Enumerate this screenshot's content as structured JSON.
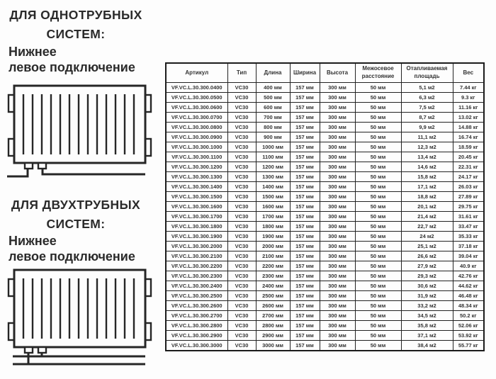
{
  "left_panel": {
    "one_pipe": {
      "title_line1": "ДЛЯ ОДНОТРУБНЫХ",
      "title_line2": "СИСТЕМ:",
      "subtitle_line1": "Нижнее",
      "subtitle_line2": "левое подключение"
    },
    "two_pipe": {
      "title_line1": "ДЛЯ ДВУХТРУБНЫХ",
      "title_line2": "СИСТЕМ:",
      "subtitle_line1": "Нижнее",
      "subtitle_line2": "левое подключение"
    }
  },
  "table": {
    "headers": [
      "Артикул",
      "Тип",
      "Длина",
      "Ширина",
      "Высота",
      "Межосевое расстояние",
      "Отапливаемая площадь",
      "Вес"
    ],
    "rows": [
      [
        "VF.VC.L.30.300.0400",
        "VC30",
        "400 мм",
        "157 мм",
        "300 мм",
        "50 мм",
        "5,1 м2",
        "7.44 кг"
      ],
      [
        "VF.VC.L.30.300.0500",
        "VC30",
        "500 мм",
        "157 мм",
        "300 мм",
        "50 мм",
        "6,3 м2",
        "9.3 кг"
      ],
      [
        "VF.VC.L.30.300.0600",
        "VC30",
        "600 мм",
        "157 мм",
        "300 мм",
        "50 мм",
        "7,5 м2",
        "11.16 кг"
      ],
      [
        "VF.VC.L.30.300.0700",
        "VC30",
        "700 мм",
        "157 мм",
        "300 мм",
        "50 мм",
        "8,7 м2",
        "13.02 кг"
      ],
      [
        "VF.VC.L.30.300.0800",
        "VC30",
        "800 мм",
        "157 мм",
        "300 мм",
        "50 мм",
        "9,9 м2",
        "14.88 кг"
      ],
      [
        "VF.VC.L.30.300.0900",
        "VC30",
        "900 мм",
        "157 мм",
        "300 мм",
        "50 мм",
        "11,1 м2",
        "16.74 кг"
      ],
      [
        "VF.VC.L.30.300.1000",
        "VC30",
        "1000 мм",
        "157 мм",
        "300 мм",
        "50 мм",
        "12,3 м2",
        "18.59 кг"
      ],
      [
        "VF.VC.L.30.300.1100",
        "VC30",
        "1100 мм",
        "157 мм",
        "300 мм",
        "50 мм",
        "13,4 м2",
        "20.45 кг"
      ],
      [
        "VF.VC.L.30.300.1200",
        "VC30",
        "1200 мм",
        "157 мм",
        "300 мм",
        "50 мм",
        "14,6 м2",
        "22.31 кг"
      ],
      [
        "VF.VC.L.30.300.1300",
        "VC30",
        "1300 мм",
        "157 мм",
        "300 мм",
        "50 мм",
        "15,8 м2",
        "24.17 кг"
      ],
      [
        "VF.VC.L.30.300.1400",
        "VC30",
        "1400 мм",
        "157 мм",
        "300 мм",
        "50 мм",
        "17,1 м2",
        "26.03 кг"
      ],
      [
        "VF.VC.L.30.300.1500",
        "VC30",
        "1500 мм",
        "157 мм",
        "300 мм",
        "50 мм",
        "18,8 м2",
        "27.89 кг"
      ],
      [
        "VF.VC.L.30.300.1600",
        "VC30",
        "1600 мм",
        "157 мм",
        "300 мм",
        "50 мм",
        "20,1 м2",
        "29.75 кг"
      ],
      [
        "VF.VC.L.30.300.1700",
        "VC30",
        "1700 мм",
        "157 мм",
        "300 мм",
        "50 мм",
        "21,4 м2",
        "31.61 кг"
      ],
      [
        "VF.VC.L.30.300.1800",
        "VC30",
        "1800 мм",
        "157 мм",
        "300 мм",
        "50 мм",
        "22,7 м2",
        "33.47 кг"
      ],
      [
        "VF.VC.L.30.300.1900",
        "VC30",
        "1900 мм",
        "157 мм",
        "300 мм",
        "50 мм",
        "24 м2",
        "35.33 кг"
      ],
      [
        "VF.VC.L.30.300.2000",
        "VC30",
        "2000 мм",
        "157 мм",
        "300 мм",
        "50 мм",
        "25,1 м2",
        "37.18 кг"
      ],
      [
        "VF.VC.L.30.300.2100",
        "VC30",
        "2100 мм",
        "157 мм",
        "300 мм",
        "50 мм",
        "26,6 м2",
        "39.04 кг"
      ],
      [
        "VF.VC.L.30.300.2200",
        "VC30",
        "2200 мм",
        "157 мм",
        "300 мм",
        "50 мм",
        "27,9 м2",
        "40.9 кг"
      ],
      [
        "VF.VC.L.30.300.2300",
        "VC30",
        "2300 мм",
        "157 мм",
        "300 мм",
        "50 мм",
        "29,3 м2",
        "42.76 кг"
      ],
      [
        "VF.VC.L.30.300.2400",
        "VC30",
        "2400 мм",
        "157 мм",
        "300 мм",
        "50 мм",
        "30,6 м2",
        "44.62 кг"
      ],
      [
        "VF.VC.L.30.300.2500",
        "VC30",
        "2500 мм",
        "157 мм",
        "300 мм",
        "50 мм",
        "31,9 м2",
        "46.48 кг"
      ],
      [
        "VF.VC.L.30.300.2600",
        "VC30",
        "2600 мм",
        "157 мм",
        "300 мм",
        "50 мм",
        "33,2 м2",
        "48.34 кг"
      ],
      [
        "VF.VC.L.30.300.2700",
        "VC30",
        "2700 мм",
        "157 мм",
        "300 мм",
        "50 мм",
        "34,5 м2",
        "50.2 кг"
      ],
      [
        "VF.VC.L.30.300.2800",
        "VC30",
        "2800 мм",
        "157 мм",
        "300 мм",
        "50 мм",
        "35,8 м2",
        "52.06 кг"
      ],
      [
        "VF.VC.L.30.300.2900",
        "VC30",
        "2900 мм",
        "157 мм",
        "300 мм",
        "50 мм",
        "37,1 м2",
        "53.92 кг"
      ],
      [
        "VF.VC.L.30.300.3000",
        "VC30",
        "3000 мм",
        "157 мм",
        "300 мм",
        "50 мм",
        "38,4 м2",
        "55.77 кг"
      ]
    ]
  },
  "colors": {
    "text": "#333333",
    "border": "#222222",
    "background": "#fdfdfd"
  }
}
